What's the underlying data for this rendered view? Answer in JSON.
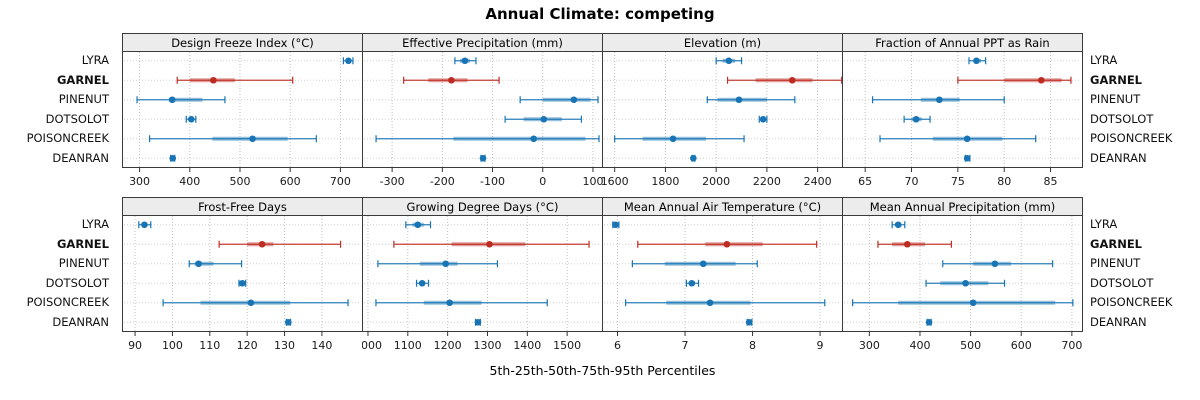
{
  "title": "Annual Climate: competing",
  "xlabel": "5th-25th-50th-75th-95th Percentiles",
  "colors": {
    "site": "#1874B4",
    "highlight": "#BE2B21",
    "header_bg": "#ECECEC",
    "panel_border": "#3a3a3a",
    "grid": "#c0c0c0",
    "tick": "#333333",
    "tick_label": "#1a1a1a"
  },
  "chart_data": {
    "type": "dotplot-percentiles",
    "title": "Annual Climate: competing",
    "xlabel": "5th-25th-50th-75th-95th Percentiles",
    "percentile_labels": [
      "5th",
      "25th",
      "50th",
      "75th",
      "95th"
    ],
    "layout": {
      "rows": 2,
      "cols": 4
    },
    "sites": [
      "LYRA",
      "GARNEL",
      "PINENUT",
      "DOTSOLOT",
      "POISONCREEK",
      "DEANRAN"
    ],
    "highlight_site": "GARNEL",
    "panels": [
      {
        "title": "Design Freeze Index (°C)",
        "xlim": [
          265,
          745
        ],
        "ticks": [
          300,
          400,
          500,
          600,
          700
        ],
        "values": [
          [
            706,
            712,
            716,
            720,
            725
          ],
          [
            375,
            400,
            447,
            490,
            605
          ],
          [
            295,
            358,
            365,
            425,
            470
          ],
          [
            393,
            399,
            403,
            407,
            412
          ],
          [
            320,
            445,
            525,
            595,
            652
          ],
          [
            362,
            364,
            366,
            368,
            370
          ]
        ]
      },
      {
        "title": "Effective Precipitation (mm)",
        "xlim": [
          -360,
          120
        ],
        "ticks": [
          -300,
          -200,
          -100,
          0,
          100
        ],
        "values": [
          [
            -175,
            -165,
            -155,
            -145,
            -133
          ],
          [
            -277,
            -228,
            -182,
            -150,
            -87
          ],
          [
            -45,
            0,
            62,
            95,
            110
          ],
          [
            -75,
            -38,
            2,
            38,
            77
          ],
          [
            -332,
            -178,
            -18,
            85,
            112
          ],
          [
            -123,
            -121,
            -119,
            -117,
            -115
          ]
        ]
      },
      {
        "title": "Elevation (m)",
        "xlim": [
          1550,
          2500
        ],
        "ticks": [
          1600,
          1800,
          2000,
          2200,
          2400
        ],
        "values": [
          [
            2000,
            2025,
            2050,
            2075,
            2100
          ],
          [
            2045,
            2155,
            2300,
            2380,
            2495
          ],
          [
            1965,
            2005,
            2090,
            2200,
            2310
          ],
          [
            2170,
            2180,
            2185,
            2192,
            2200
          ],
          [
            1600,
            1710,
            1830,
            1960,
            2110
          ],
          [
            1905,
            1908,
            1910,
            1913,
            1916
          ]
        ]
      },
      {
        "title": "Fraction of Annual PPT as Rain",
        "xlim": [
          62.5,
          88.5
        ],
        "ticks": [
          65,
          70,
          75,
          80,
          85
        ],
        "values": [
          [
            76.2,
            76.7,
            77.0,
            77.5,
            78.0
          ],
          [
            75.0,
            80.0,
            84.0,
            86.2,
            87.2
          ],
          [
            65.8,
            71.0,
            73.0,
            75.2,
            80.0
          ],
          [
            69.2,
            70.0,
            70.5,
            71.1,
            72.0
          ],
          [
            66.6,
            72.3,
            76.0,
            79.8,
            83.4
          ],
          [
            75.8,
            75.9,
            76.0,
            76.1,
            76.3
          ]
        ]
      },
      {
        "title": "Frost-Free Days",
        "xlim": [
          86.5,
          151
        ],
        "ticks": [
          90,
          100,
          110,
          120,
          130,
          140
        ],
        "values": [
          [
            91.0,
            92.0,
            92.5,
            93.3,
            94.2
          ],
          [
            112.5,
            120.0,
            124.0,
            127.0,
            145.0
          ],
          [
            104.5,
            106.0,
            107.0,
            111.0,
            118.5
          ],
          [
            117.8,
            118.3,
            118.7,
            119.1,
            119.6
          ],
          [
            97.5,
            107.5,
            121.0,
            131.5,
            147.0
          ],
          [
            130.5,
            130.8,
            131.0,
            131.3,
            131.6
          ]
        ]
      },
      {
        "title": "Growing Degree Days (°C)",
        "xlim": [
          985,
          1590
        ],
        "ticks": [
          1000,
          1100,
          1200,
          1300,
          1400,
          1500
        ],
        "values": [
          [
            1095,
            1112,
            1125,
            1140,
            1157
          ],
          [
            1065,
            1210,
            1305,
            1395,
            1555
          ],
          [
            1025,
            1130,
            1195,
            1225,
            1325
          ],
          [
            1122,
            1130,
            1136,
            1143,
            1152
          ],
          [
            1020,
            1140,
            1205,
            1285,
            1450
          ],
          [
            1270,
            1273,
            1276,
            1279,
            1282
          ]
        ]
      },
      {
        "title": "Mean Annual Air Temperature (°C)",
        "xlim": [
          5.77,
          9.34
        ],
        "ticks": [
          6,
          7,
          8,
          9
        ],
        "values": [
          [
            5.93,
            5.95,
            5.97,
            5.99,
            6.02
          ],
          [
            6.3,
            7.3,
            7.62,
            8.15,
            8.95
          ],
          [
            6.22,
            6.7,
            7.27,
            7.75,
            8.07
          ],
          [
            7.02,
            7.07,
            7.1,
            7.15,
            7.2
          ],
          [
            6.12,
            6.72,
            7.37,
            7.97,
            9.07
          ],
          [
            7.92,
            7.94,
            7.95,
            7.97,
            7.99
          ]
        ]
      },
      {
        "title": "Mean Annual Precipitation (mm)",
        "xlim": [
          246,
          722
        ],
        "ticks": [
          300,
          400,
          500,
          600,
          700
        ],
        "values": [
          [
            345,
            351,
            357,
            363,
            370
          ],
          [
            317,
            345,
            375,
            410,
            462
          ],
          [
            445,
            505,
            548,
            580,
            662
          ],
          [
            412,
            440,
            490,
            535,
            567
          ],
          [
            267,
            357,
            505,
            667,
            702
          ],
          [
            414,
            416,
            418,
            420,
            422
          ]
        ]
      }
    ]
  }
}
